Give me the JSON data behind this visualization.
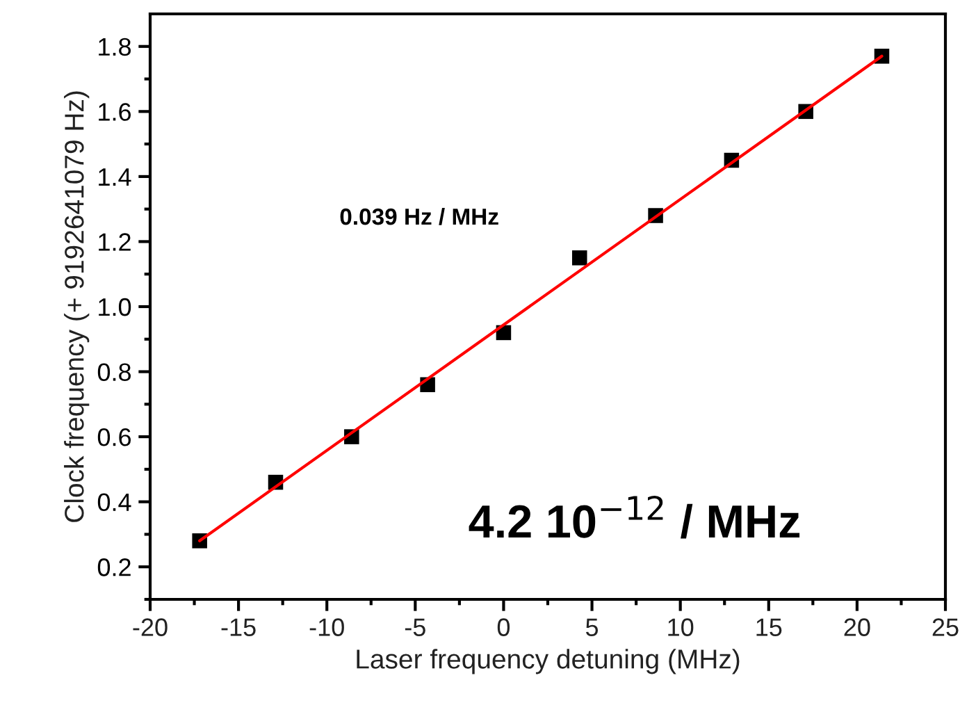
{
  "chart_data": {
    "type": "scatter",
    "xlabel": "Laser frequency detuning (MHz)",
    "ylabel": "Clock frequency (+ 9192641079 Hz)",
    "x": [
      -17.2,
      -12.9,
      -8.6,
      -4.3,
      0,
      4.3,
      8.6,
      12.9,
      17.1,
      21.4
    ],
    "series": [
      {
        "color": "#000000",
        "marker": "square",
        "values": [
          0.28,
          0.46,
          0.6,
          0.76,
          0.92,
          1.15,
          1.28,
          1.45,
          1.6,
          1.77
        ]
      },
      {
        "type": "line",
        "color": "#ff0000",
        "marker": "none",
        "line_style": "solid",
        "x": [
          -17.2,
          21.4
        ],
        "values": [
          0.28,
          1.77
        ]
      }
    ],
    "annotations": [
      "0.039 Hz / MHz",
      "4.2 10$^{−12}$ / MHz"
    ],
    "xlim": [
      -20,
      25
    ],
    "xticks": [
      -20,
      -15,
      -10,
      -5,
      0,
      5,
      10,
      15,
      20,
      25
    ],
    "ylim": [
      0.1,
      1.9
    ],
    "yticks": [
      {
        "value": 0.2,
        "label": "0.2"
      },
      {
        "value": 0.4,
        "label": "0.4"
      },
      {
        "value": 0.6,
        "label": "0.6"
      },
      {
        "value": 0.8,
        "label": "0.8"
      },
      {
        "value": 1.0,
        "label": "1.0"
      },
      {
        "value": 1.2,
        "label": "1.2"
      },
      {
        "value": 1.4,
        "label": "1.4"
      },
      {
        "value": 1.6,
        "label": "1.6"
      },
      {
        "value": 1.8,
        "label": "1.8"
      }
    ],
    "grid": false,
    "legend": false
  }
}
